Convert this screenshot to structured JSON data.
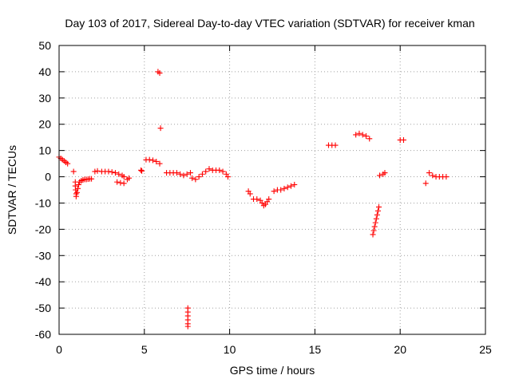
{
  "chart_data": {
    "type": "scatter",
    "title": "Day 103 of 2017, Sidereal Day-to-day VTEC variation (SDTVAR) for receiver kman",
    "xlabel": "GPS time / hours",
    "ylabel": "SDTVAR / TECUs",
    "xlim": [
      0,
      25
    ],
    "ylim": [
      -60,
      50
    ],
    "xticks": [
      0,
      5,
      10,
      15,
      20,
      25
    ],
    "yticks": [
      -60,
      -50,
      -40,
      -30,
      -20,
      -10,
      0,
      10,
      20,
      30,
      40,
      50
    ],
    "grid": true,
    "marker": "plus",
    "color": "#ff0000",
    "series": [
      {
        "name": "SDTVAR",
        "points": [
          [
            0.0,
            7.5
          ],
          [
            0.1,
            7.0
          ],
          [
            0.2,
            6.5
          ],
          [
            0.3,
            6.0
          ],
          [
            0.4,
            5.5
          ],
          [
            0.5,
            5.0
          ],
          [
            0.85,
            2.0
          ],
          [
            0.95,
            -2.0
          ],
          [
            0.95,
            -3.5
          ],
          [
            0.97,
            -5.0
          ],
          [
            1.0,
            -6.5
          ],
          [
            1.0,
            -7.5
          ],
          [
            1.05,
            -6.0
          ],
          [
            1.1,
            -4.5
          ],
          [
            1.15,
            -3.0
          ],
          [
            1.2,
            -2.0
          ],
          [
            1.3,
            -1.5
          ],
          [
            1.4,
            -1.2
          ],
          [
            1.5,
            -1.0
          ],
          [
            1.6,
            -1.0
          ],
          [
            1.7,
            -0.9
          ],
          [
            1.8,
            -0.8
          ],
          [
            1.9,
            -0.8
          ],
          [
            2.1,
            2.0
          ],
          [
            2.25,
            2.2
          ],
          [
            2.5,
            2.0
          ],
          [
            2.7,
            2.0
          ],
          [
            2.9,
            2.0
          ],
          [
            3.1,
            1.8
          ],
          [
            3.3,
            1.5
          ],
          [
            3.5,
            1.0
          ],
          [
            3.7,
            0.5
          ],
          [
            3.8,
            0.0
          ],
          [
            3.4,
            -2.0
          ],
          [
            3.6,
            -2.3
          ],
          [
            3.8,
            -2.5
          ],
          [
            4.0,
            -1.0
          ],
          [
            4.1,
            -0.5
          ],
          [
            4.8,
            2.5
          ],
          [
            4.85,
            2.2
          ],
          [
            5.1,
            6.5
          ],
          [
            5.3,
            6.5
          ],
          [
            5.5,
            6.3
          ],
          [
            5.7,
            5.8
          ],
          [
            5.9,
            5.0
          ],
          [
            5.8,
            40.0
          ],
          [
            5.9,
            39.5
          ],
          [
            5.95,
            18.5
          ],
          [
            6.3,
            1.5
          ],
          [
            6.5,
            1.5
          ],
          [
            6.7,
            1.5
          ],
          [
            6.9,
            1.5
          ],
          [
            7.1,
            1.0
          ],
          [
            7.3,
            0.5
          ],
          [
            7.5,
            1.0
          ],
          [
            7.7,
            1.5
          ],
          [
            7.55,
            -50.0
          ],
          [
            7.55,
            -51.5
          ],
          [
            7.55,
            -53.0
          ],
          [
            7.55,
            -54.5
          ],
          [
            7.55,
            -56.0
          ],
          [
            7.55,
            -57.0
          ],
          [
            7.8,
            -0.5
          ],
          [
            8.0,
            -1.0
          ],
          [
            8.2,
            0.0
          ],
          [
            8.4,
            1.0
          ],
          [
            8.6,
            2.0
          ],
          [
            8.8,
            3.0
          ],
          [
            9.0,
            2.5
          ],
          [
            9.2,
            2.5
          ],
          [
            9.4,
            2.5
          ],
          [
            9.6,
            2.0
          ],
          [
            9.8,
            1.0
          ],
          [
            9.9,
            0.0
          ],
          [
            11.1,
            -5.5
          ],
          [
            11.2,
            -6.5
          ],
          [
            11.4,
            -8.5
          ],
          [
            11.6,
            -8.5
          ],
          [
            11.8,
            -9.0
          ],
          [
            11.9,
            -10.0
          ],
          [
            12.0,
            -11.0
          ],
          [
            12.1,
            -10.5
          ],
          [
            12.2,
            -9.5
          ],
          [
            12.3,
            -8.5
          ],
          [
            12.6,
            -5.5
          ],
          [
            12.8,
            -5.0
          ],
          [
            13.0,
            -5.0
          ],
          [
            13.2,
            -4.5
          ],
          [
            13.4,
            -4.0
          ],
          [
            13.6,
            -3.5
          ],
          [
            13.8,
            -3.0
          ],
          [
            15.8,
            12.0
          ],
          [
            16.0,
            12.0
          ],
          [
            16.2,
            12.0
          ],
          [
            17.4,
            16.0
          ],
          [
            17.6,
            16.5
          ],
          [
            17.8,
            16.0
          ],
          [
            18.0,
            15.5
          ],
          [
            18.2,
            14.5
          ],
          [
            18.4,
            -22.0
          ],
          [
            18.45,
            -20.5
          ],
          [
            18.5,
            -19.0
          ],
          [
            18.55,
            -17.5
          ],
          [
            18.6,
            -16.0
          ],
          [
            18.65,
            -14.5
          ],
          [
            18.7,
            -13.0
          ],
          [
            18.75,
            -11.5
          ],
          [
            18.8,
            0.5
          ],
          [
            19.0,
            1.0
          ],
          [
            19.1,
            1.5
          ],
          [
            20.0,
            14.0
          ],
          [
            20.2,
            14.0
          ],
          [
            21.5,
            -2.5
          ],
          [
            21.7,
            1.5
          ],
          [
            21.9,
            0.5
          ],
          [
            22.1,
            0.0
          ],
          [
            22.3,
            0.0
          ],
          [
            22.5,
            0.0
          ],
          [
            22.7,
            0.0
          ]
        ]
      }
    ]
  }
}
